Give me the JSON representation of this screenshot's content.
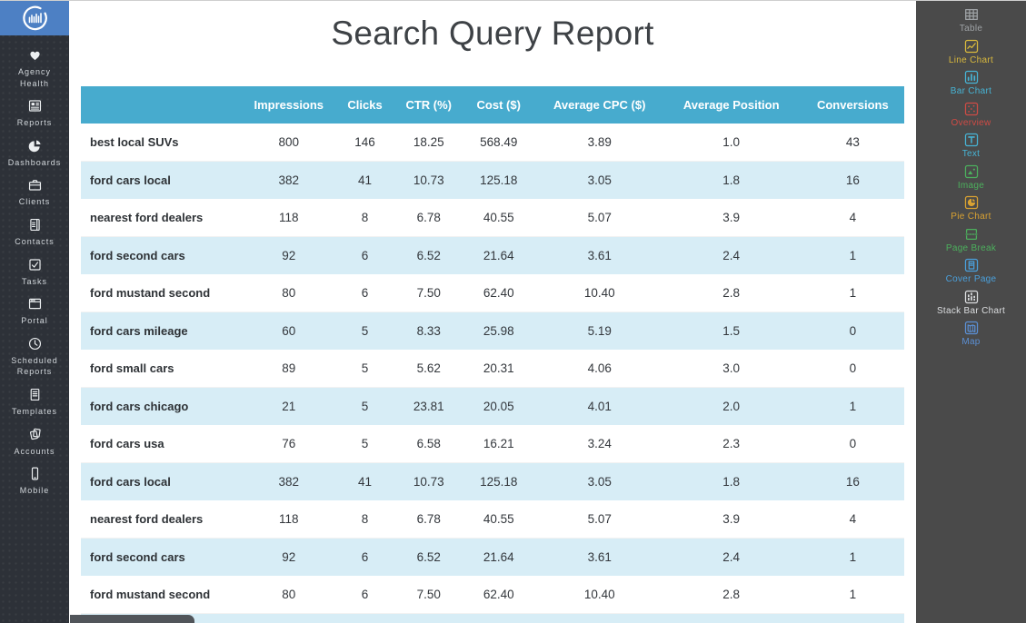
{
  "left_sidebar": {
    "items": [
      {
        "label": "Agency Health",
        "icon": "agency-health-heart-icon"
      },
      {
        "label": "Reports",
        "icon": "reports-icon"
      },
      {
        "label": "Dashboards",
        "icon": "dashboards-pie-icon"
      },
      {
        "label": "Clients",
        "icon": "clients-briefcase-icon"
      },
      {
        "label": "Contacts",
        "icon": "contacts-icon"
      },
      {
        "label": "Tasks",
        "icon": "tasks-checkbox-icon"
      },
      {
        "label": "Portal",
        "icon": "portal-window-icon"
      },
      {
        "label": "Scheduled Reports",
        "icon": "scheduled-reports-clock-icon"
      },
      {
        "label": "Templates",
        "icon": "templates-doc-icon"
      },
      {
        "label": "Accounts",
        "icon": "accounts-pages-icon"
      },
      {
        "label": "Mobile",
        "icon": "mobile-phone-icon"
      }
    ]
  },
  "report": {
    "title": "Search Query Report",
    "table": {
      "columns": [
        "Impressions",
        "Clicks",
        "CTR (%)",
        "Cost ($)",
        "Average CPC ($)",
        "Average Position",
        "Conversions"
      ],
      "rows": [
        {
          "query": "best local SUVs",
          "values": [
            "800",
            "146",
            "18.25",
            "568.49",
            "3.89",
            "1.0",
            "43"
          ]
        },
        {
          "query": "ford cars local",
          "values": [
            "382",
            "41",
            "10.73",
            "125.18",
            "3.05",
            "1.8",
            "16"
          ]
        },
        {
          "query": "nearest ford dealers",
          "values": [
            "118",
            "8",
            "6.78",
            "40.55",
            "5.07",
            "3.9",
            "4"
          ]
        },
        {
          "query": "ford second cars",
          "values": [
            "92",
            "6",
            "6.52",
            "21.64",
            "3.61",
            "2.4",
            "1"
          ]
        },
        {
          "query": "ford mustand second",
          "values": [
            "80",
            "6",
            "7.50",
            "62.40",
            "10.40",
            "2.8",
            "1"
          ]
        },
        {
          "query": "ford cars mileage",
          "values": [
            "60",
            "5",
            "8.33",
            "25.98",
            "5.19",
            "1.5",
            "0"
          ]
        },
        {
          "query": "ford small cars",
          "values": [
            "89",
            "5",
            "5.62",
            "20.31",
            "4.06",
            "3.0",
            "0"
          ]
        },
        {
          "query": "ford cars chicago",
          "values": [
            "21",
            "5",
            "23.81",
            "20.05",
            "4.01",
            "2.0",
            "1"
          ]
        },
        {
          "query": "ford cars usa",
          "values": [
            "76",
            "5",
            "6.58",
            "16.21",
            "3.24",
            "2.3",
            "0"
          ]
        },
        {
          "query": "ford cars local",
          "values": [
            "382",
            "41",
            "10.73",
            "125.18",
            "3.05",
            "1.8",
            "16"
          ]
        },
        {
          "query": "nearest ford dealers",
          "values": [
            "118",
            "8",
            "6.78",
            "40.55",
            "5.07",
            "3.9",
            "4"
          ]
        },
        {
          "query": "ford second cars",
          "values": [
            "92",
            "6",
            "6.52",
            "21.64",
            "3.61",
            "2.4",
            "1"
          ]
        },
        {
          "query": "ford mustand second",
          "values": [
            "80",
            "6",
            "7.50",
            "62.40",
            "10.40",
            "2.8",
            "1"
          ]
        }
      ]
    }
  },
  "right_sidebar": {
    "items": [
      {
        "label": "Table",
        "icon": "table-widget-icon",
        "color": "#9fa3a6"
      },
      {
        "label": "Line Chart",
        "icon": "line-chart-icon",
        "color": "#d9b93d"
      },
      {
        "label": "Bar Chart",
        "icon": "bar-chart-icon",
        "color": "#47b4d5"
      },
      {
        "label": "Overview",
        "icon": "overview-scatter-icon",
        "color": "#cf4b45"
      },
      {
        "label": "Text",
        "icon": "text-widget-icon",
        "color": "#47b4d5"
      },
      {
        "label": "Image",
        "icon": "image-widget-icon",
        "color": "#4cb05d"
      },
      {
        "label": "Pie Chart",
        "icon": "pie-chart-icon",
        "color": "#d9a232"
      },
      {
        "label": "Page Break",
        "icon": "page-break-icon",
        "color": "#4cb05d"
      },
      {
        "label": "Cover Page",
        "icon": "cover-page-icon",
        "color": "#4aa0dc"
      },
      {
        "label": "Stack Bar Chart",
        "icon": "stack-bar-chart-icon",
        "color": "#dcdee0"
      },
      {
        "label": "Map",
        "icon": "map-widget-icon",
        "color": "#5b8fd4"
      }
    ]
  },
  "colors": {
    "table_header_bg": "#47abce",
    "row_alt_bg": "#d7edf6",
    "left_sidebar_bg": "#2d3138",
    "logo_bg": "#4d80c4",
    "right_sidebar_bg": "#4a4a4a"
  }
}
